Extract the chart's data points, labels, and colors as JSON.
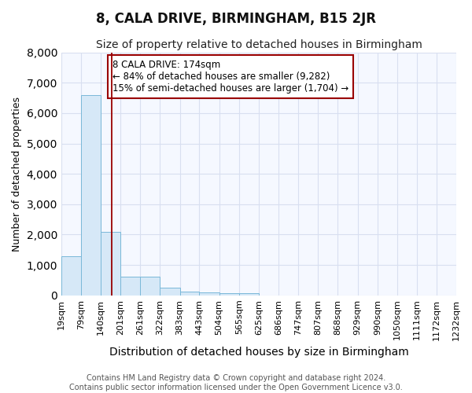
{
  "title": "8, CALA DRIVE, BIRMINGHAM, B15 2JR",
  "subtitle": "Size of property relative to detached houses in Birmingham",
  "xlabel": "Distribution of detached houses by size in Birmingham",
  "ylabel": "Number of detached properties",
  "footer_line1": "Contains HM Land Registry data © Crown copyright and database right 2024.",
  "footer_line2": "Contains public sector information licensed under the Open Government Licence v3.0.",
  "annotation_line1": "8 CALA DRIVE: 174sqm",
  "annotation_line2": "← 84% of detached houses are smaller (9,282)",
  "annotation_line3": "15% of semi-detached houses are larger (1,704) →",
  "bin_edges": [
    19,
    79,
    140,
    201,
    261,
    322,
    383,
    443,
    504,
    565,
    625,
    686,
    747,
    807,
    868,
    929,
    990,
    1050,
    1111,
    1172,
    1232
  ],
  "bar_values": [
    1300,
    6600,
    2100,
    620,
    620,
    250,
    130,
    100,
    70,
    70,
    0,
    0,
    0,
    0,
    0,
    0,
    0,
    0,
    0,
    0
  ],
  "bar_color": "#d6e8f7",
  "bar_edge_color": "#7ab8d8",
  "vline_color": "#990000",
  "vline_x": 174,
  "ylim": [
    0,
    8000
  ],
  "bg_color": "#ffffff",
  "plot_bg_color": "#f5f8ff",
  "grid_color": "#d8dff0",
  "title_fontsize": 12,
  "subtitle_fontsize": 10,
  "ylabel_fontsize": 9,
  "xlabel_fontsize": 10,
  "tick_label_fontsize": 8,
  "annotation_fontsize": 8.5,
  "footer_fontsize": 7
}
